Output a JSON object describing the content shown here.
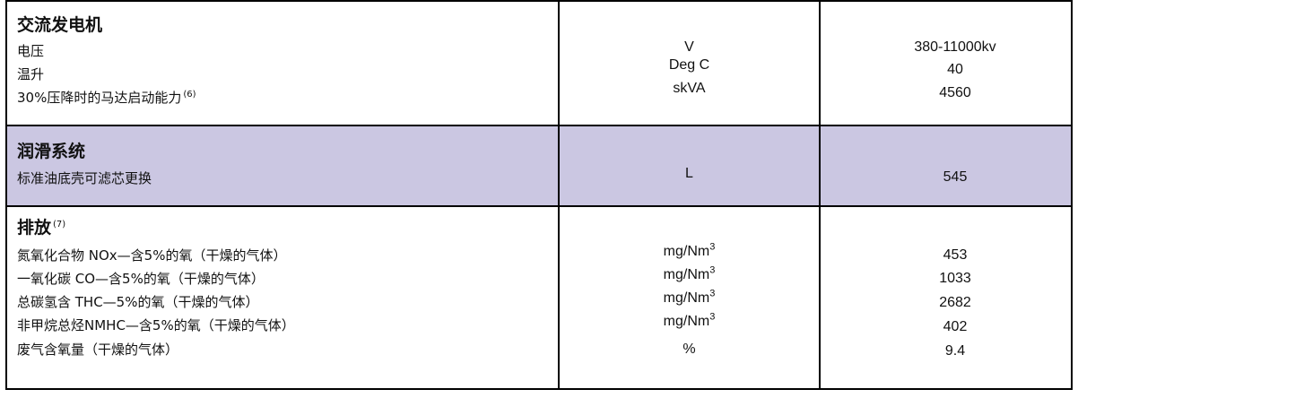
{
  "alternator": {
    "title": "交流发电机",
    "rows": [
      {
        "label": "电压",
        "unit": "V",
        "value": "380-11000kv"
      },
      {
        "label": "温升",
        "unit": "Deg C",
        "value": "40"
      },
      {
        "label": "30%压降时的马达启动能力",
        "note": "(6)",
        "unit": "skVA",
        "value": "4560"
      }
    ]
  },
  "lubrication": {
    "title": "润滑系统",
    "rows": [
      {
        "label": "标准油底壳可滤芯更换",
        "unit": "L",
        "value": "545"
      }
    ],
    "background": "#cbc7e2"
  },
  "emissions": {
    "title": "排放",
    "note": "(7)",
    "unit_base": "mg/Nm",
    "unit_exp": "3",
    "rows": [
      {
        "label": "氮氧化合物 NOx—含5%的氧（干燥的气体）",
        "value": "453"
      },
      {
        "label": "一氧化碳 CO—含5%的氧（干燥的气体）",
        "value": "1033"
      },
      {
        "label": "总碳氢含 THC—5%的氧（干燥的气体）",
        "value": "2682"
      },
      {
        "label": "非甲烷总烃NMHC—含5%的氧（干燥的气体）",
        "value": "402"
      },
      {
        "label": "废气含氧量（干燥的气体）",
        "unit": "%",
        "value": "9.4"
      }
    ]
  }
}
